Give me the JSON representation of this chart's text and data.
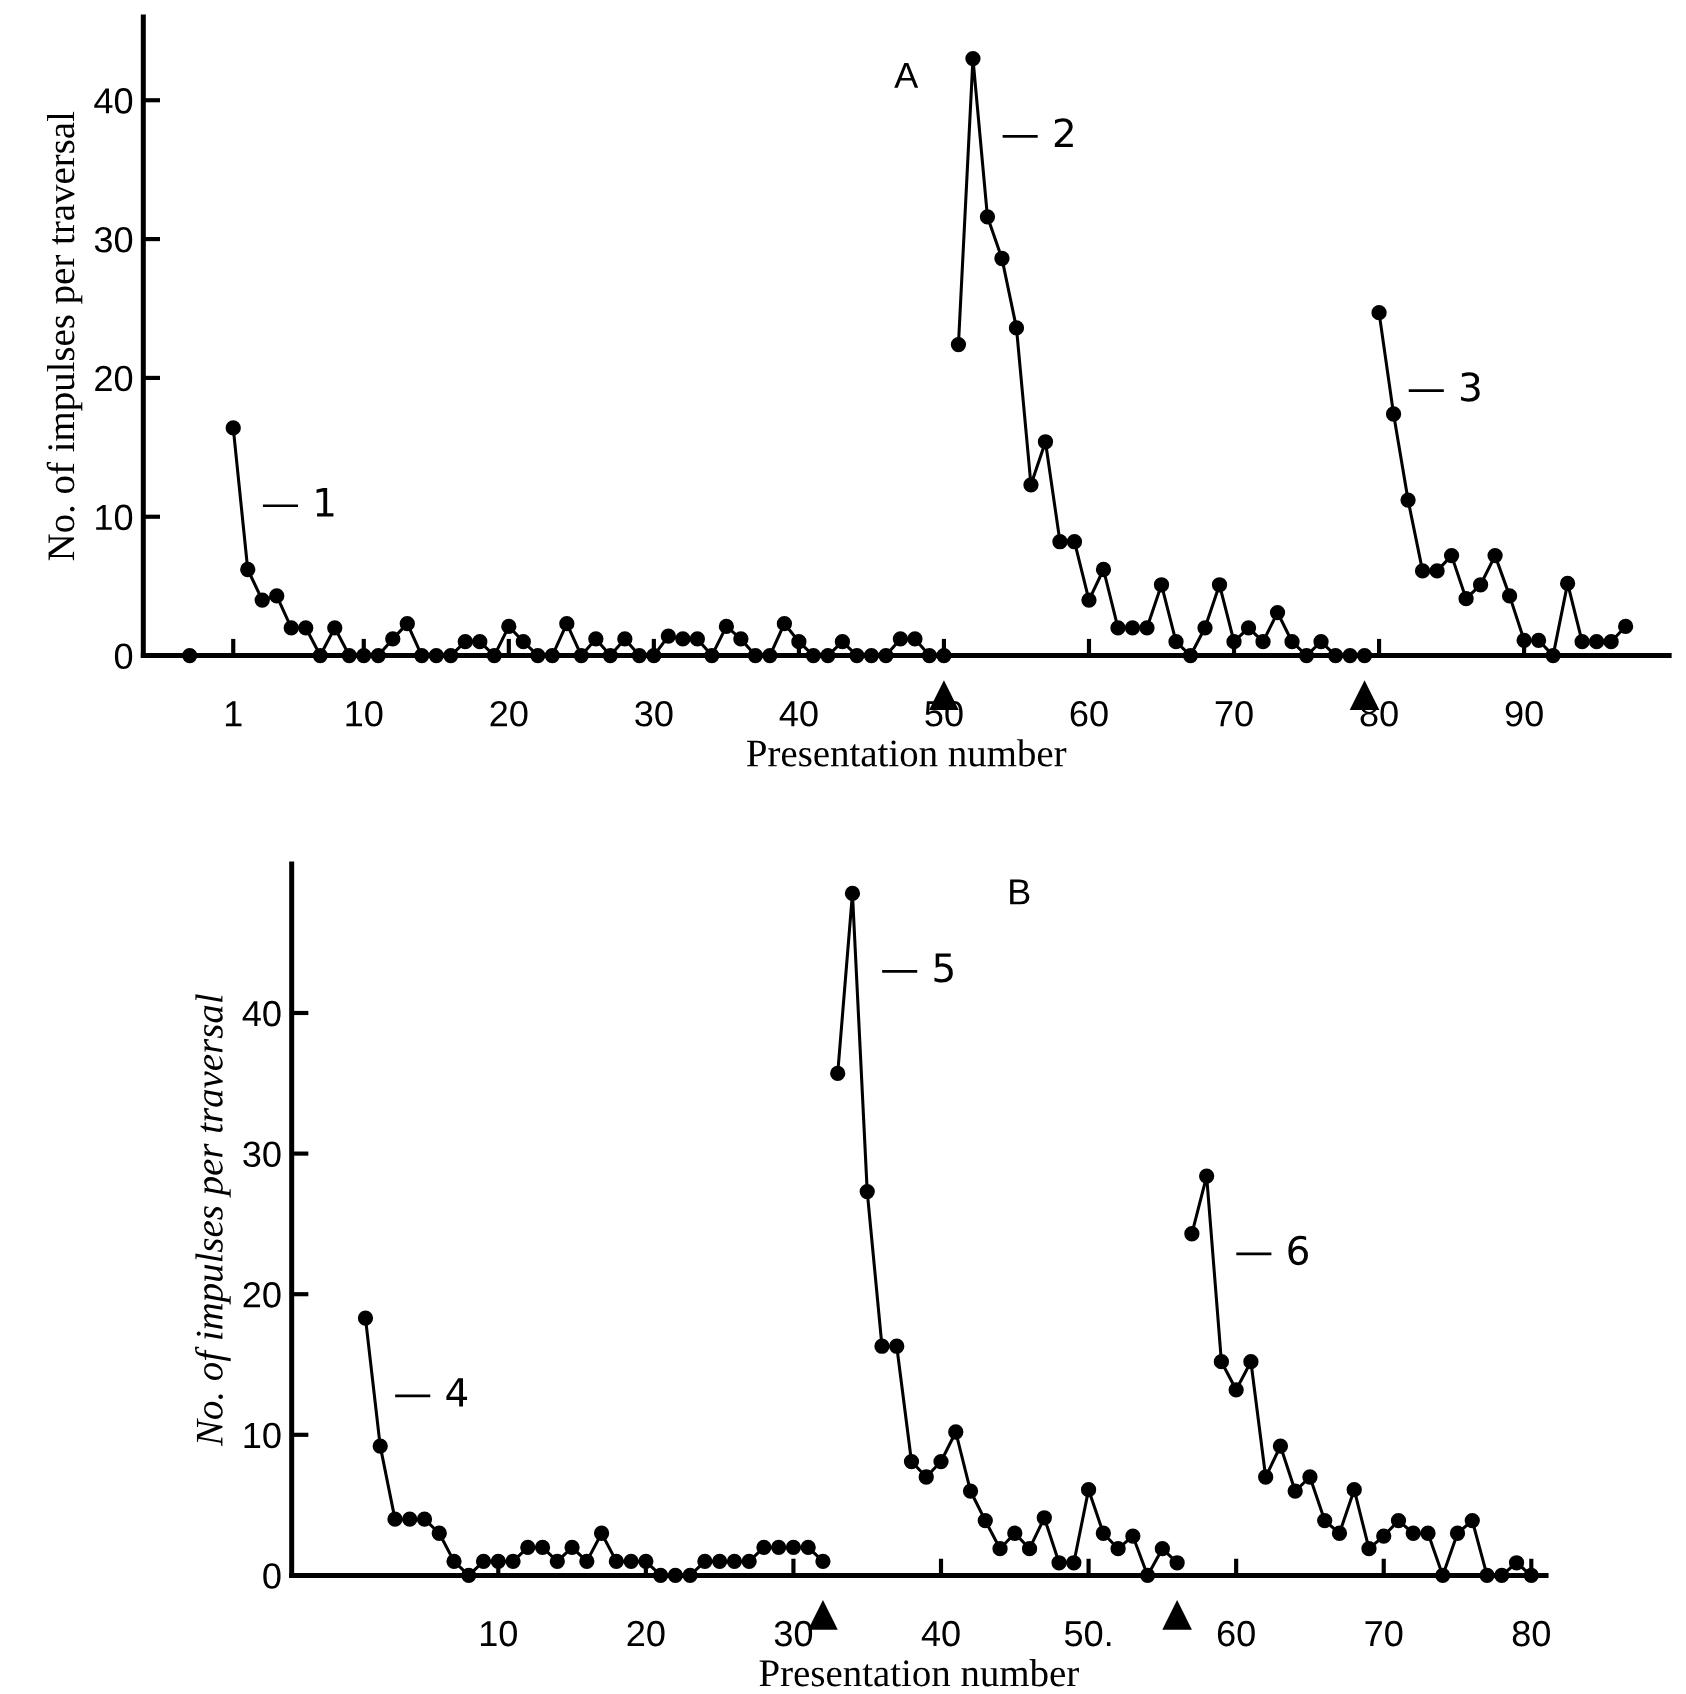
{
  "chart_data": [
    {
      "type": "line",
      "title": "A",
      "xlabel": "Presentation number",
      "ylabel": "No. of impulses per traversal",
      "marker": "circle",
      "line_style": "solid",
      "xlim": [
        -5.2,
        100
      ],
      "ylim": [
        0,
        46
      ],
      "xticks": [
        1,
        10,
        20,
        30,
        40,
        50,
        60,
        70,
        80,
        90
      ],
      "yticks": [
        0,
        10,
        20,
        30,
        40
      ],
      "series": [
        {
          "color": "#000000",
          "x": [
            -2
          ],
          "values": [
            0
          ]
        },
        {
          "color": "#000000",
          "x": [
            1,
            2,
            3,
            4,
            5,
            6,
            7,
            8,
            9,
            10,
            11,
            12,
            13,
            14,
            15,
            16,
            17,
            18,
            19,
            20,
            21,
            22,
            23,
            24,
            25,
            26,
            27,
            28,
            29,
            30,
            31,
            32,
            33,
            34,
            35,
            36,
            37,
            38,
            39,
            40,
            41,
            42,
            43,
            44,
            45,
            46,
            47,
            48,
            49,
            50
          ],
          "values": [
            16.4,
            6.2,
            4.0,
            4.3,
            2.0,
            2.0,
            0,
            2.0,
            0,
            0,
            0,
            1.2,
            2.3,
            0,
            0,
            0,
            1.0,
            1.0,
            0,
            2.1,
            1.0,
            0,
            0,
            2.3,
            0,
            1.2,
            0,
            1.2,
            0,
            0,
            1.4,
            1.2,
            1.2,
            0,
            2.1,
            1.2,
            0,
            0,
            2.3,
            1.0,
            0,
            0,
            1.0,
            0,
            0,
            0,
            1.2,
            1.2,
            0,
            0
          ]
        },
        {
          "color": "#000000",
          "x": [
            51,
            52,
            53,
            54,
            55,
            56,
            57,
            58,
            59,
            60,
            61,
            62,
            63,
            64,
            65,
            66,
            67,
            68,
            69,
            70,
            71,
            72,
            73,
            74,
            75,
            76,
            77,
            78,
            79
          ],
          "values": [
            22.4,
            43,
            31.6,
            28.6,
            23.6,
            12.3,
            15.4,
            8.2,
            8.2,
            4.0,
            6.2,
            2.0,
            2.0,
            2.0,
            5.1,
            1.0,
            0,
            2.0,
            5.1,
            1.0,
            2.0,
            1.0,
            3.1,
            1.0,
            0,
            1.0,
            0,
            0,
            0
          ]
        },
        {
          "color": "#000000",
          "x": [
            80,
            81,
            82,
            83,
            84,
            85,
            86,
            87,
            88,
            89,
            90,
            91,
            92,
            93,
            94,
            95,
            96,
            97
          ],
          "values": [
            24.7,
            17.4,
            11.2,
            6.1,
            6.1,
            7.2,
            4.1,
            5.1,
            7.2,
            4.3,
            1.1,
            1.1,
            0,
            5.2,
            1.0,
            1.0,
            1.0,
            2.1
          ]
        }
      ],
      "annotations": [
        "— 1",
        "— 2",
        "— 3",
        "▲",
        "▲"
      ]
    },
    {
      "type": "line",
      "title": "B",
      "xlabel": "Presentation number",
      "ylabel": "No. of impulses per traversal",
      "marker": "circle",
      "line_style": "solid",
      "xlim": [
        -4,
        81
      ],
      "ylim": [
        0,
        50.6
      ],
      "xticks": [
        10,
        20,
        30,
        40,
        {
          "value": 50,
          "label": "50."
        },
        60,
        70,
        80
      ],
      "yticks": [
        0,
        10,
        20,
        30,
        40
      ],
      "series": [
        {
          "color": "#000000",
          "x": [
            1,
            2,
            3,
            4,
            5,
            6,
            7,
            8,
            9,
            10,
            11,
            12,
            13,
            14,
            15,
            16,
            17,
            18,
            19,
            20,
            21,
            22,
            23,
            24,
            25,
            26,
            27,
            28,
            29,
            30,
            31,
            32
          ],
          "values": [
            18.3,
            9.2,
            4,
            4,
            4,
            3,
            1,
            0,
            1,
            1,
            1,
            2,
            2,
            1,
            2,
            1,
            3,
            1,
            1,
            1,
            0,
            0,
            0,
            1,
            1,
            1,
            1,
            2,
            2,
            2,
            2,
            1
          ]
        },
        {
          "color": "#000000",
          "x": [
            33,
            34,
            35,
            36,
            37,
            38,
            39,
            40,
            41,
            42,
            43,
            44,
            45,
            46,
            47,
            48,
            49,
            50,
            51,
            52,
            53,
            54,
            55,
            56
          ],
          "values": [
            35.7,
            48.5,
            27.3,
            16.3,
            16.3,
            8.1,
            7.0,
            8.1,
            10.2,
            6.0,
            3.9,
            1.9,
            3.0,
            1.9,
            4.1,
            0.9,
            0.9,
            6.1,
            3.0,
            1.9,
            2.8,
            0,
            1.9,
            0.9
          ]
        },
        {
          "color": "#000000",
          "x": [
            57,
            58,
            59,
            60,
            61,
            62,
            63,
            64,
            65,
            66,
            67,
            68,
            69,
            70,
            71,
            72,
            73,
            74,
            75,
            76,
            77,
            78,
            79,
            80
          ],
          "values": [
            24.3,
            28.4,
            15.2,
            13.2,
            15.2,
            7.0,
            9.2,
            6.0,
            7.0,
            3.9,
            3.0,
            6.1,
            1.9,
            2.8,
            3.9,
            3.0,
            3.0,
            0,
            3.0,
            3.9,
            0,
            0,
            0.9,
            0
          ]
        }
      ],
      "annotations": [
        "— 4",
        "— 5",
        "— 6",
        "▲",
        "▲"
      ]
    }
  ]
}
